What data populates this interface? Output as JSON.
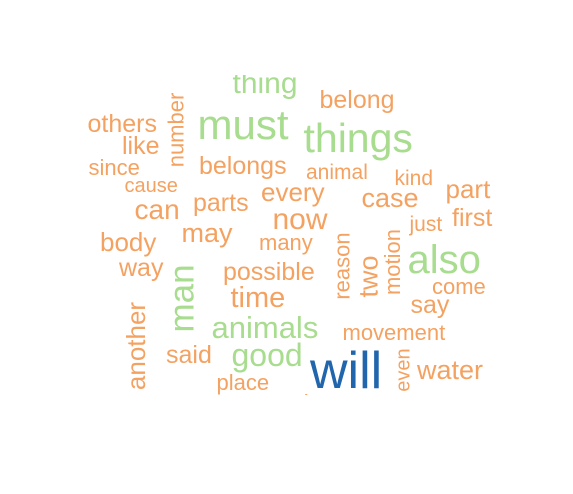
{
  "palette": {
    "orange": "#f4a261",
    "green": "#a8dc8f",
    "blue": "#2166ac"
  },
  "words": [
    {
      "text": "thing",
      "color": "orange_green",
      "tone": "green"
    },
    {
      "text": "belong",
      "tone": "orange"
    },
    {
      "text": "others",
      "tone": "orange"
    },
    {
      "text": "must",
      "tone": "green"
    },
    {
      "text": "things",
      "tone": "green"
    },
    {
      "text": "number",
      "tone": "orange"
    },
    {
      "text": "like",
      "tone": "orange"
    },
    {
      "text": "since",
      "tone": "orange"
    },
    {
      "text": "belongs",
      "tone": "orange"
    },
    {
      "text": "animal",
      "tone": "orange"
    },
    {
      "text": "kind",
      "tone": "orange"
    },
    {
      "text": "part",
      "tone": "orange"
    },
    {
      "text": "cause",
      "tone": "orange"
    },
    {
      "text": "every",
      "tone": "orange"
    },
    {
      "text": "case",
      "tone": "orange"
    },
    {
      "text": "can",
      "tone": "orange"
    },
    {
      "text": "parts",
      "tone": "orange"
    },
    {
      "text": "now",
      "tone": "orange"
    },
    {
      "text": "just",
      "tone": "orange"
    },
    {
      "text": "first",
      "tone": "orange"
    },
    {
      "text": "body",
      "tone": "orange"
    },
    {
      "text": "may",
      "tone": "orange"
    },
    {
      "text": "many",
      "tone": "orange"
    },
    {
      "text": "reason",
      "tone": "orange"
    },
    {
      "text": "also",
      "tone": "green"
    },
    {
      "text": "way",
      "tone": "orange"
    },
    {
      "text": "man",
      "tone": "green"
    },
    {
      "text": "possible",
      "tone": "orange"
    },
    {
      "text": "two",
      "tone": "orange"
    },
    {
      "text": "motion",
      "tone": "orange"
    },
    {
      "text": "come",
      "tone": "orange"
    },
    {
      "text": "time",
      "tone": "orange"
    },
    {
      "text": "say",
      "tone": "orange"
    },
    {
      "text": "another",
      "tone": "orange"
    },
    {
      "text": "animals",
      "tone": "green"
    },
    {
      "text": "movement",
      "tone": "orange"
    },
    {
      "text": "said",
      "tone": "orange"
    },
    {
      "text": "good",
      "tone": "green"
    },
    {
      "text": "will",
      "tone": "blue"
    },
    {
      "text": "even",
      "tone": "orange"
    },
    {
      "text": "water",
      "tone": "orange"
    },
    {
      "text": "place",
      "tone": "orange"
    },
    {
      "text": "always",
      "tone": "orange"
    }
  ]
}
